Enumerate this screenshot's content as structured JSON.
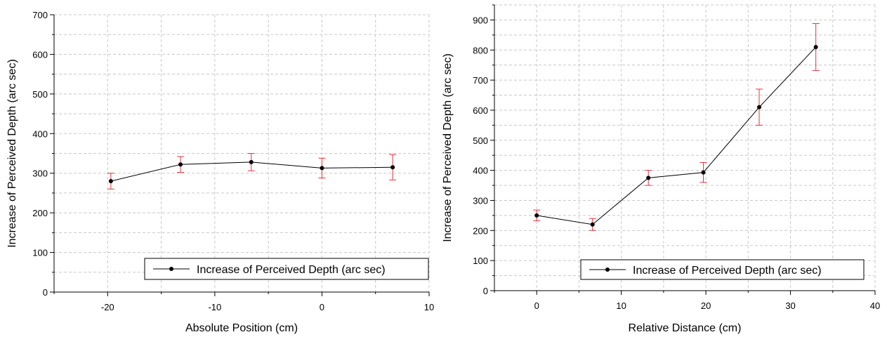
{
  "chart_data": [
    {
      "type": "line",
      "xlabel": "Absolute Position (cm)",
      "ylabel": "Increase of Perceived Depth (arc sec)",
      "xlim": [
        -25,
        10
      ],
      "ylim": [
        0,
        700
      ],
      "xticks": [
        -20,
        -10,
        0,
        10
      ],
      "yticks": [
        0,
        100,
        200,
        300,
        400,
        500,
        600,
        700
      ],
      "grid": true,
      "legend_position": "bottom-right",
      "series": [
        {
          "name": "Increase of Perceived Depth (arc sec)",
          "x": [
            -19.7,
            -13.2,
            -6.6,
            0,
            6.6
          ],
          "y": [
            280,
            322,
            328,
            313,
            315
          ],
          "error": [
            20,
            20,
            22,
            25,
            32
          ],
          "line_color": "#000000",
          "marker_color": "#000000",
          "error_color": "#e8313a"
        }
      ]
    },
    {
      "type": "line",
      "xlabel": "Relative Distance (cm)",
      "ylabel": "Increase of Perceived Depth (arc sec)",
      "xlim": [
        -5,
        40
      ],
      "ylim": [
        0,
        950
      ],
      "xticks": [
        0,
        10,
        20,
        30,
        40
      ],
      "yticks": [
        0,
        100,
        200,
        300,
        400,
        500,
        600,
        700,
        800,
        900
      ],
      "grid": true,
      "legend_position": "bottom-right",
      "series": [
        {
          "name": "Increase of Perceived Depth (arc sec)",
          "x": [
            0,
            6.6,
            13.2,
            19.7,
            26.3,
            33
          ],
          "y": [
            250,
            220,
            375,
            393,
            610,
            810
          ],
          "error": [
            18,
            20,
            25,
            33,
            60,
            78
          ],
          "line_color": "#000000",
          "marker_color": "#000000",
          "error_color": "#e8313a"
        }
      ]
    }
  ]
}
